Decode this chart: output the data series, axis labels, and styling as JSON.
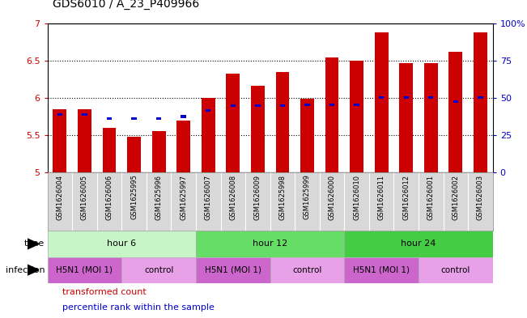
{
  "title": "GDS6010 / A_23_P409966",
  "samples": [
    "GSM1626004",
    "GSM1626005",
    "GSM1626006",
    "GSM1625995",
    "GSM1625996",
    "GSM1625997",
    "GSM1626007",
    "GSM1626008",
    "GSM1626009",
    "GSM1625998",
    "GSM1625999",
    "GSM1626000",
    "GSM1626010",
    "GSM1626011",
    "GSM1626012",
    "GSM1626001",
    "GSM1626002",
    "GSM1626003"
  ],
  "red_values": [
    5.85,
    5.85,
    5.6,
    5.48,
    5.55,
    5.7,
    6.0,
    6.33,
    6.16,
    6.35,
    5.99,
    6.55,
    6.5,
    6.88,
    6.47,
    6.47,
    6.62,
    6.88
  ],
  "blue_values": [
    5.78,
    5.78,
    5.72,
    5.72,
    5.72,
    5.75,
    5.83,
    5.9,
    5.9,
    5.9,
    5.91,
    5.91,
    5.91,
    6.01,
    6.01,
    6.01,
    5.95,
    6.01
  ],
  "ylim": [
    5.0,
    7.0
  ],
  "yticks_left": [
    5.0,
    5.5,
    6.0,
    6.5,
    7.0
  ],
  "ytick_labels_left": [
    "5",
    "5.5",
    "6",
    "6.5",
    "7"
  ],
  "yticks_right_pct": [
    0,
    25,
    50,
    75,
    100
  ],
  "ytick_labels_right": [
    "0",
    "25",
    "50",
    "75",
    "100%"
  ],
  "bar_bottom": 5.0,
  "bar_width": 0.55,
  "red_color": "#cc0000",
  "blue_color": "#0000cc",
  "time_groups": [
    {
      "label": "hour 6",
      "start": 0,
      "end": 6,
      "color": "#c8f5c8"
    },
    {
      "label": "hour 12",
      "start": 6,
      "end": 12,
      "color": "#66dd66"
    },
    {
      "label": "hour 24",
      "start": 12,
      "end": 18,
      "color": "#44cc44"
    }
  ],
  "infection_groups": [
    {
      "label": "H5N1 (MOI 1)",
      "start": 0,
      "end": 3,
      "color": "#cc66cc"
    },
    {
      "label": "control",
      "start": 3,
      "end": 6,
      "color": "#e8a0e8"
    },
    {
      "label": "H5N1 (MOI 1)",
      "start": 6,
      "end": 9,
      "color": "#cc66cc"
    },
    {
      "label": "control",
      "start": 9,
      "end": 12,
      "color": "#e8a0e8"
    },
    {
      "label": "H5N1 (MOI 1)",
      "start": 12,
      "end": 15,
      "color": "#cc66cc"
    },
    {
      "label": "control",
      "start": 15,
      "end": 18,
      "color": "#e8a0e8"
    }
  ],
  "n_bars": 18,
  "left_axis_color": "#cc0000",
  "right_axis_color": "#0000cc",
  "sample_label_bg": "#d8d8d8",
  "grid_dotted_at": [
    5.5,
    6.0,
    6.5
  ],
  "legend": [
    {
      "color": "#cc0000",
      "label": "transformed count"
    },
    {
      "color": "#0000cc",
      "label": "percentile rank within the sample"
    }
  ]
}
